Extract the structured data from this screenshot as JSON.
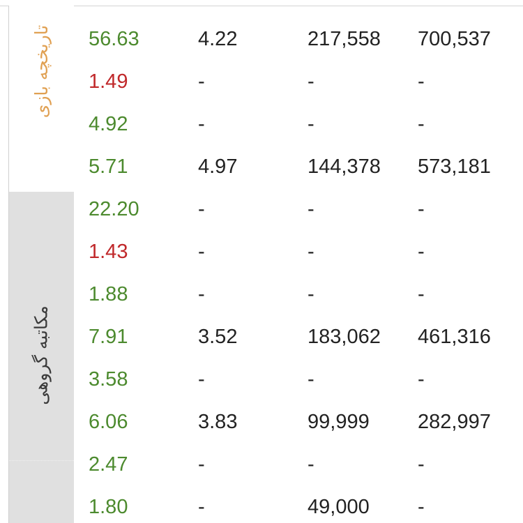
{
  "groups": {
    "game_history": "تاریخچه بازی",
    "group_chat": "مکاتبه گروهی"
  },
  "colors": {
    "positive": "#4c8a2e",
    "negative": "#c0282a",
    "game_label": "#e0a052",
    "chat_panel": "#e0e0e0"
  },
  "rows": [
    {
      "rate": "56.63",
      "trend": "up",
      "c2": "4.22",
      "c3": "217,558",
      "c4": "700,537"
    },
    {
      "rate": "1.49",
      "trend": "down",
      "c2": "-",
      "c3": "-",
      "c4": "-"
    },
    {
      "rate": "4.92",
      "trend": "up",
      "c2": "-",
      "c3": "-",
      "c4": "-"
    },
    {
      "rate": "5.71",
      "trend": "up",
      "c2": "4.97",
      "c3": "144,378",
      "c4": "573,181"
    },
    {
      "rate": "22.20",
      "trend": "up",
      "c2": "-",
      "c3": "-",
      "c4": "-"
    },
    {
      "rate": "1.43",
      "trend": "down",
      "c2": "-",
      "c3": "-",
      "c4": "-"
    },
    {
      "rate": "1.88",
      "trend": "up",
      "c2": "-",
      "c3": "-",
      "c4": "-"
    },
    {
      "rate": "7.91",
      "trend": "up",
      "c2": "3.52",
      "c3": "183,062",
      "c4": "461,316"
    },
    {
      "rate": "3.58",
      "trend": "up",
      "c2": "-",
      "c3": "-",
      "c4": "-"
    },
    {
      "rate": "6.06",
      "trend": "up",
      "c2": "3.83",
      "c3": "99,999",
      "c4": "282,997"
    },
    {
      "rate": "2.47",
      "trend": "up",
      "c2": "-",
      "c3": "-",
      "c4": "-"
    },
    {
      "rate": "1.80",
      "trend": "up",
      "c2": "-",
      "c3": "49,000",
      "c4": "-"
    }
  ]
}
